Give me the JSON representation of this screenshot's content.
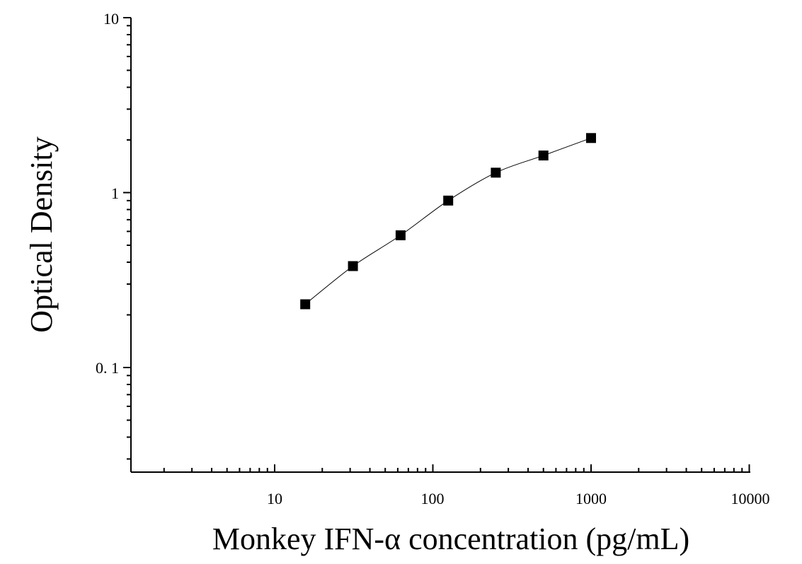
{
  "chart_data": {
    "type": "scatter",
    "title": "",
    "xlabel": "Monkey IFN-α concentration (pg/mL)",
    "ylabel": "Optical Density",
    "x_scale": "log",
    "y_scale": "log",
    "xlim": [
      1.3,
      10000
    ],
    "ylim": [
      0.027,
      10
    ],
    "x_tick_labels": [
      "10",
      "100",
      "1000",
      "10000"
    ],
    "y_tick_labels": [
      "0. 1",
      "1",
      "10"
    ],
    "grid": false,
    "legend": "none",
    "marker_color": "#000000",
    "series": [
      {
        "x": [
          15.6,
          31.25,
          62.5,
          125,
          250,
          500,
          1000
        ],
        "y": [
          0.23,
          0.38,
          0.57,
          0.9,
          1.3,
          1.63,
          2.05
        ]
      }
    ]
  }
}
